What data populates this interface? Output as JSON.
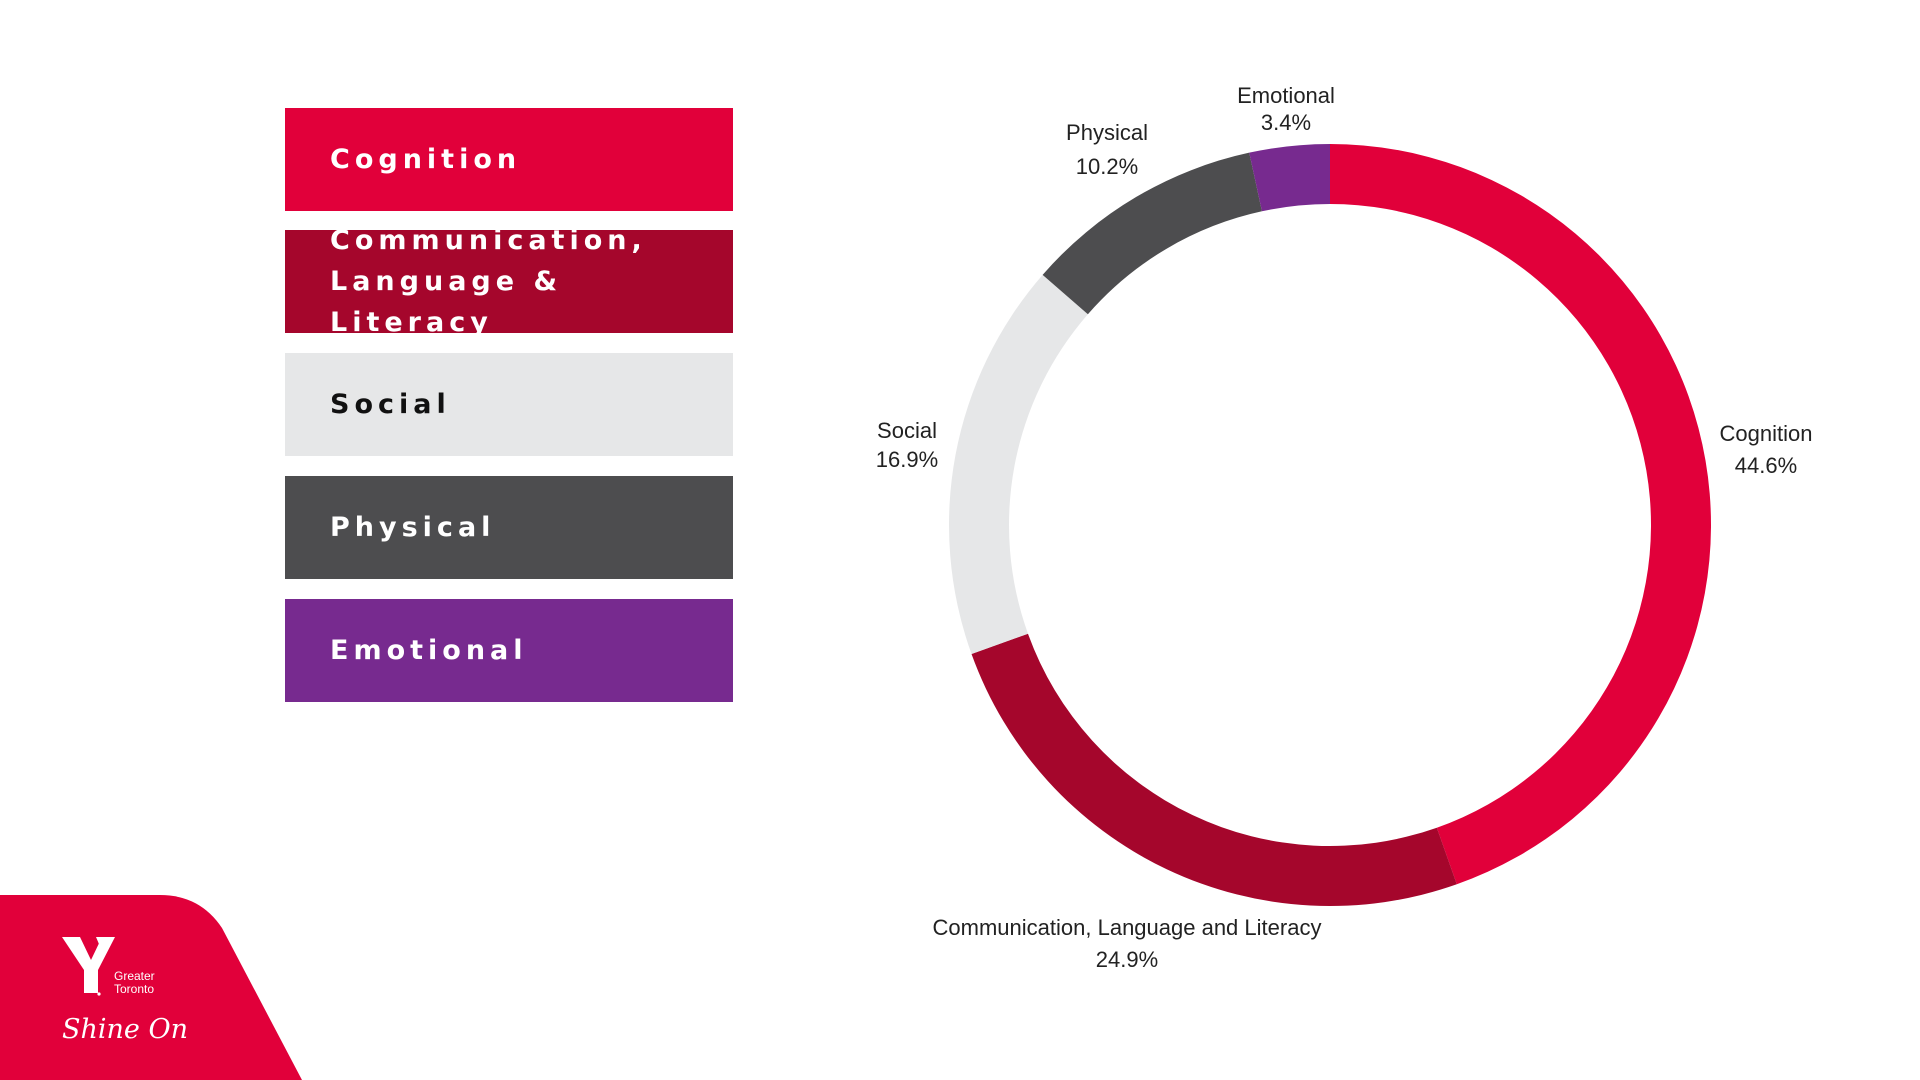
{
  "legend": [
    {
      "label_line1": "Cognition",
      "label_line2": "",
      "color": "#e1003a",
      "text_color": "#ffffff"
    },
    {
      "label_line1": "Communication,",
      "label_line2": "Language & Literacy",
      "color": "#a5062c",
      "text_color": "#ffffff"
    },
    {
      "label_line1": "Social",
      "label_line2": "",
      "color": "#e6e7e8",
      "text_color": "#111111"
    },
    {
      "label_line1": "Physical",
      "label_line2": "",
      "color": "#4d4d4f",
      "text_color": "#ffffff"
    },
    {
      "label_line1": "Emotional",
      "label_line2": "",
      "color": "#772a8f",
      "text_color": "#ffffff"
    }
  ],
  "chart_data": {
    "type": "donut",
    "title": "",
    "series": [
      {
        "name": "Cognition",
        "value": 44.6,
        "label": "44.6%",
        "color": "#e1003a"
      },
      {
        "name": "Communication, Language and Literacy",
        "value": 24.9,
        "label": "24.9%",
        "color": "#a5062c"
      },
      {
        "name": "Social",
        "value": 16.9,
        "label": "16.9%",
        "color": "#e6e7e8"
      },
      {
        "name": "Physical",
        "value": 10.2,
        "label": "10.2%",
        "color": "#4d4d4f"
      },
      {
        "name": "Emotional",
        "value": 3.4,
        "label": "3.4%",
        "color": "#772a8f"
      }
    ]
  },
  "logo": {
    "line1": "Greater",
    "line2": "Toronto",
    "tagline": "Shine On",
    "color": "#e1003a"
  }
}
